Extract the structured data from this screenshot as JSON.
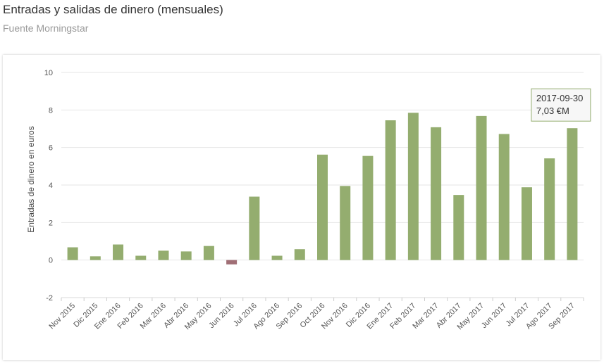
{
  "header": {
    "title": "Entradas y salidas de dinero (mensuales)",
    "subtitle": "Fuente Morningstar"
  },
  "colors": {
    "positive": "#94ad6f",
    "negative": "#a06e75",
    "grid": "#e6e6e6"
  },
  "chart_data": {
    "type": "bar",
    "title": "Entradas y salidas de dinero (mensuales)",
    "subtitle": "Fuente Morningstar",
    "xlabel": "",
    "ylabel": "Entradas de dinero en euros",
    "ylim": [
      -2,
      10
    ],
    "yticks": [
      -2,
      0,
      2,
      4,
      6,
      8,
      10
    ],
    "grid": true,
    "categories": [
      "Nov 2015",
      "Dic 2015",
      "Ene 2016",
      "Feb 2016",
      "Mar 2016",
      "Abr 2016",
      "May 2016",
      "Jun 2016",
      "Jul 2016",
      "Ago 2016",
      "Sep 2016",
      "Oct 2016",
      "Nov 2016",
      "Dic 2016",
      "Ene 2017",
      "Feb 2017",
      "Mar 2017",
      "Abr 2017",
      "May 2017",
      "Jun 2017",
      "Jul 2017",
      "Ago 2017",
      "Sep 2017"
    ],
    "values": [
      0.68,
      0.2,
      0.83,
      0.23,
      0.5,
      0.46,
      0.75,
      -0.23,
      3.38,
      0.23,
      0.58,
      5.62,
      3.95,
      5.55,
      7.45,
      7.85,
      7.08,
      3.47,
      7.68,
      6.72,
      3.88,
      5.42,
      7.03
    ],
    "tooltip": {
      "category_index": 22,
      "date": "2017-09-30",
      "value_label": "7,03 €M"
    }
  }
}
